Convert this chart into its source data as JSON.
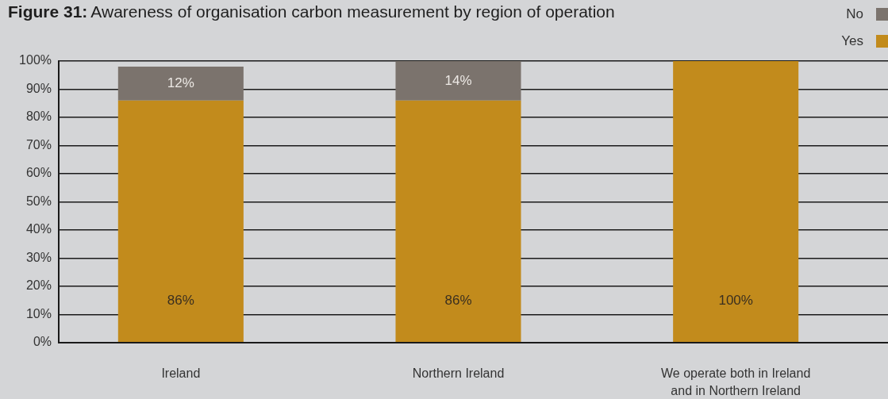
{
  "chart_data": {
    "type": "bar",
    "title": "Figure 31: Awareness of organisation carbon measurement by region of operation",
    "categories": [
      "Ireland",
      "Northern Ireland",
      "We operate both in Ireland and in Northern Ireland"
    ],
    "stacked": true,
    "series": [
      {
        "name": "Yes",
        "color": "#c28b1c",
        "values": [
          86,
          86,
          100
        ],
        "value_labels": [
          "86%",
          "86%",
          "100%"
        ]
      },
      {
        "name": "No",
        "color": "#7b736d",
        "values": [
          12,
          14,
          null
        ],
        "value_labels": [
          "12%",
          "14%",
          null
        ]
      }
    ],
    "ylim": [
      0,
      100
    ],
    "yticks": [
      {
        "value": 0,
        "label": "0%"
      },
      {
        "value": 10,
        "label": "10%"
      },
      {
        "value": 20,
        "label": "20%"
      },
      {
        "value": 30,
        "label": "30%"
      },
      {
        "value": 40,
        "label": "40%"
      },
      {
        "value": 50,
        "label": "50%"
      },
      {
        "value": 60,
        "label": "60%"
      },
      {
        "value": 70,
        "label": "70%"
      },
      {
        "value": 80,
        "label": "80%"
      },
      {
        "value": 90,
        "label": "90%"
      },
      {
        "value": 100,
        "label": "100%"
      }
    ],
    "grid": "y",
    "legend": "top right"
  }
}
